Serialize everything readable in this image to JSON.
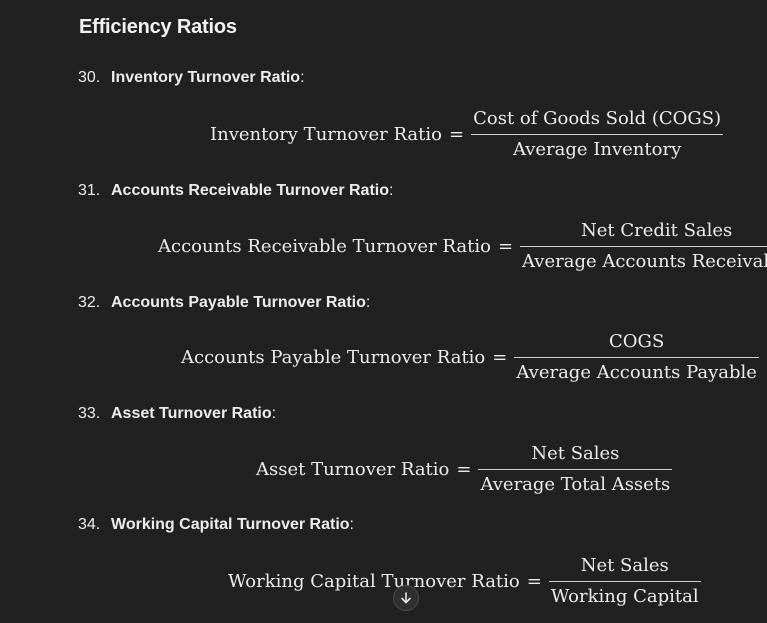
{
  "heading": "Efficiency Ratios",
  "items": [
    {
      "number": "30.",
      "name": "Inventory Turnover Ratio",
      "suffix": ":",
      "lhs": "Inventory Turnover Ratio",
      "eq": "=",
      "numerator": "Cost of Goods Sold (COGS)",
      "denominator": "Average Inventory"
    },
    {
      "number": "31.",
      "name": "Accounts Receivable Turnover Ratio",
      "suffix": ":",
      "lhs": "Accounts Receivable Turnover Ratio",
      "eq": "=",
      "numerator": "Net Credit Sales",
      "denominator": "Average Accounts Receivable"
    },
    {
      "number": "32.",
      "name": "Accounts Payable Turnover Ratio",
      "suffix": ":",
      "lhs": "Accounts Payable Turnover Ratio",
      "eq": "=",
      "numerator": "COGS",
      "denominator": "Average Accounts Payable"
    },
    {
      "number": "33.",
      "name": "Asset Turnover Ratio",
      "suffix": ":",
      "lhs": "Asset Turnover Ratio",
      "eq": "=",
      "numerator": "Net Sales",
      "denominator": "Average Total Assets"
    },
    {
      "number": "34.",
      "name": "Working Capital Turnover Ratio",
      "suffix": ":",
      "lhs": "Working Capital Turnover Ratio",
      "eq": "=",
      "numerator": "Net Sales",
      "denominator": "Working Capital"
    }
  ],
  "scroll_down_icon": "arrow-down-icon"
}
